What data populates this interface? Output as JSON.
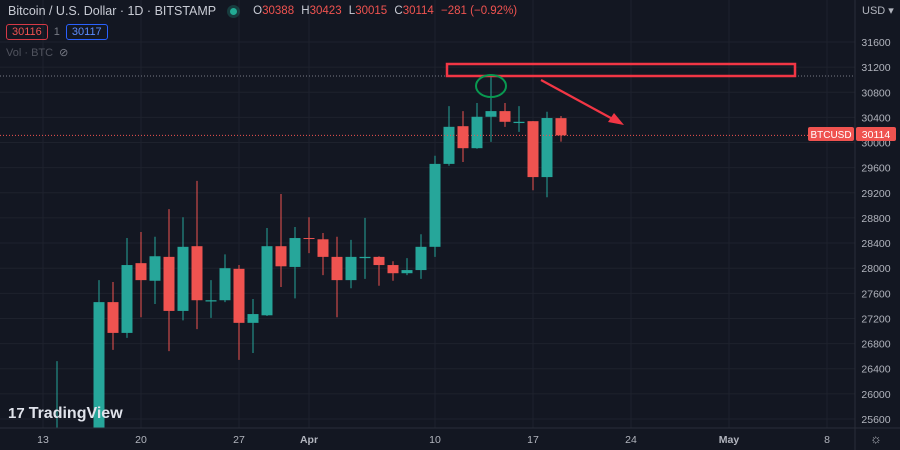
{
  "header": {
    "symbol_title": "Bitcoin / U.S. Dollar · 1D · BITSTAMP",
    "market_status": "open",
    "ohlc": {
      "o_label": "O",
      "o": "30388",
      "h_label": "H",
      "h": "30423",
      "l_label": "L",
      "l": "30015",
      "c_label": "C",
      "c": "30114",
      "change": "−281 (−0.92%)"
    },
    "sell_price": "30116",
    "spread": "1",
    "buy_price": "30117",
    "volume_label": "Vol · BTC"
  },
  "price_axis": {
    "currency": "USD",
    "current_symbol": "BTCUSD",
    "current_price": "30114"
  },
  "logo": "TradingView",
  "colors": {
    "background": "#131722",
    "up": "#26a69a",
    "down": "#ef5350",
    "annotation_red": "#f23645",
    "annotation_green": "#089950"
  },
  "chart_data": {
    "type": "candlestick",
    "title": "Bitcoin / U.S. Dollar · 1D · BITSTAMP",
    "ylim": [
      25400,
      31900
    ],
    "y_ticks": [
      25600,
      26000,
      26400,
      26800,
      27200,
      27600,
      28000,
      28400,
      28800,
      29200,
      29600,
      30000,
      30400,
      30800,
      31200,
      31600
    ],
    "x_ticks": [
      "13",
      "20",
      "27",
      "Apr",
      "10",
      "17",
      "24",
      "May",
      "8"
    ],
    "grid": true,
    "candles": [
      {
        "date": "Mar 14",
        "o": 24100,
        "h": 26520,
        "l": 24000,
        "c": 24700
      },
      {
        "date": "Mar 17",
        "o": 25040,
        "h": 27810,
        "l": 24900,
        "c": 27460
      },
      {
        "date": "Mar 18",
        "o": 27460,
        "h": 27780,
        "l": 26700,
        "c": 26970
      },
      {
        "date": "Mar 19",
        "o": 26970,
        "h": 28480,
        "l": 26890,
        "c": 28050
      },
      {
        "date": "Mar 20",
        "o": 28080,
        "h": 28575,
        "l": 27220,
        "c": 27810
      },
      {
        "date": "Mar 21",
        "o": 27800,
        "h": 28500,
        "l": 27430,
        "c": 28190
      },
      {
        "date": "Mar 22",
        "o": 28180,
        "h": 28940,
        "l": 26680,
        "c": 27320
      },
      {
        "date": "Mar 23",
        "o": 27320,
        "h": 28810,
        "l": 27170,
        "c": 28340
      },
      {
        "date": "Mar 24",
        "o": 28350,
        "h": 29390,
        "l": 27030,
        "c": 27490
      },
      {
        "date": "Mar 25",
        "o": 27470,
        "h": 27810,
        "l": 27210,
        "c": 27490
      },
      {
        "date": "Mar 26",
        "o": 27490,
        "h": 28220,
        "l": 27460,
        "c": 28000
      },
      {
        "date": "Mar 27",
        "o": 27990,
        "h": 28050,
        "l": 26540,
        "c": 27130
      },
      {
        "date": "Mar 28",
        "o": 27130,
        "h": 27510,
        "l": 26650,
        "c": 27270
      },
      {
        "date": "Mar 29",
        "o": 27250,
        "h": 28640,
        "l": 27240,
        "c": 28350
      },
      {
        "date": "Mar 30",
        "o": 28350,
        "h": 29180,
        "l": 27700,
        "c": 28030
      },
      {
        "date": "Mar 31",
        "o": 28020,
        "h": 28655,
        "l": 27520,
        "c": 28480
      },
      {
        "date": "Apr 1",
        "o": 28480,
        "h": 28810,
        "l": 28240,
        "c": 28470
      },
      {
        "date": "Apr 2",
        "o": 28460,
        "h": 28560,
        "l": 27890,
        "c": 28180
      },
      {
        "date": "Apr 3",
        "o": 28180,
        "h": 28500,
        "l": 27220,
        "c": 27810
      },
      {
        "date": "Apr 4",
        "o": 27810,
        "h": 28450,
        "l": 27680,
        "c": 28180
      },
      {
        "date": "Apr 5",
        "o": 28160,
        "h": 28800,
        "l": 27830,
        "c": 28180
      },
      {
        "date": "Apr 6",
        "o": 28180,
        "h": 28190,
        "l": 27720,
        "c": 28050
      },
      {
        "date": "Apr 7",
        "o": 28050,
        "h": 28110,
        "l": 27800,
        "c": 27920
      },
      {
        "date": "Apr 8",
        "o": 27920,
        "h": 28160,
        "l": 27890,
        "c": 27970
      },
      {
        "date": "Apr 9",
        "o": 27970,
        "h": 28540,
        "l": 27830,
        "c": 28340
      },
      {
        "date": "Apr 10",
        "o": 28340,
        "h": 29790,
        "l": 28180,
        "c": 29660
      },
      {
        "date": "Apr 11",
        "o": 29660,
        "h": 30580,
        "l": 29630,
        "c": 30250
      },
      {
        "date": "Apr 12",
        "o": 30260,
        "h": 30500,
        "l": 29690,
        "c": 29910
      },
      {
        "date": "Apr 13",
        "o": 29910,
        "h": 30630,
        "l": 29900,
        "c": 30410
      },
      {
        "date": "Apr 14",
        "o": 30410,
        "h": 31040,
        "l": 30010,
        "c": 30500
      },
      {
        "date": "Apr 15",
        "o": 30500,
        "h": 30630,
        "l": 30250,
        "c": 30330
      },
      {
        "date": "Apr 16",
        "o": 30310,
        "h": 30580,
        "l": 30170,
        "c": 30330
      },
      {
        "date": "Apr 17",
        "o": 30340,
        "h": 30340,
        "l": 29240,
        "c": 29450
      },
      {
        "date": "Apr 18",
        "o": 29450,
        "h": 30490,
        "l": 29130,
        "c": 30390
      },
      {
        "date": "Apr 19",
        "o": 30388,
        "h": 30423,
        "l": 30015,
        "c": 30114
      }
    ]
  }
}
